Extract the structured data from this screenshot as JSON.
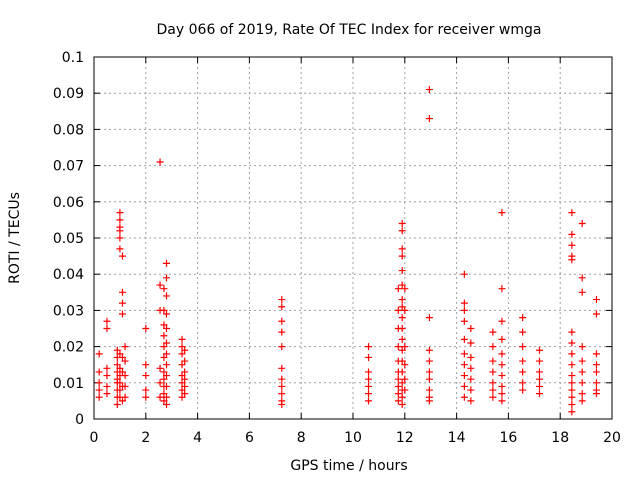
{
  "chart_data": {
    "type": "scatter",
    "title": "Day 066 of 2019, Rate Of TEC Index for receiver wmga",
    "xlabel": "GPS time / hours",
    "ylabel": "ROTI / TECUs",
    "xlim": [
      0,
      20
    ],
    "ylim": [
      0,
      0.1
    ],
    "xticks": [
      0,
      2,
      4,
      6,
      8,
      10,
      12,
      14,
      16,
      18,
      20
    ],
    "xtick_labels": [
      "0",
      "2",
      "4",
      "6",
      "8",
      "10",
      "12",
      "14",
      "16",
      "18",
      "20"
    ],
    "yticks": [
      0,
      0.01,
      0.02,
      0.03,
      0.04,
      0.05,
      0.06,
      0.07,
      0.08,
      0.09,
      0.1
    ],
    "ytick_labels": [
      "0",
      "0.01",
      "0.02",
      "0.03",
      "0.04",
      "0.05",
      "0.06",
      "0.07",
      "0.08",
      "0.09",
      "0.1"
    ],
    "grid": true,
    "marker": "plus",
    "color": "#ff0000",
    "series": [
      {
        "name": "ROTI",
        "points": [
          [
            0.2,
            0.018
          ],
          [
            0.2,
            0.013
          ],
          [
            0.2,
            0.01
          ],
          [
            0.2,
            0.008
          ],
          [
            0.2,
            0.006
          ],
          [
            0.5,
            0.027
          ],
          [
            0.5,
            0.025
          ],
          [
            0.5,
            0.014
          ],
          [
            0.5,
            0.012
          ],
          [
            0.5,
            0.009
          ],
          [
            0.5,
            0.007
          ],
          [
            0.9,
            0.019
          ],
          [
            0.9,
            0.017
          ],
          [
            0.9,
            0.015
          ],
          [
            0.9,
            0.013
          ],
          [
            0.9,
            0.011
          ],
          [
            0.9,
            0.01
          ],
          [
            0.9,
            0.008
          ],
          [
            0.9,
            0.006
          ],
          [
            0.9,
            0.004
          ],
          [
            1.0,
            0.057
          ],
          [
            1.0,
            0.055
          ],
          [
            1.0,
            0.053
          ],
          [
            1.0,
            0.052
          ],
          [
            1.0,
            0.05
          ],
          [
            1.0,
            0.047
          ],
          [
            1.0,
            0.018
          ],
          [
            1.0,
            0.014
          ],
          [
            1.0,
            0.012
          ],
          [
            1.0,
            0.01
          ],
          [
            1.0,
            0.008
          ],
          [
            1.0,
            0.006
          ],
          [
            1.1,
            0.045
          ],
          [
            1.1,
            0.035
          ],
          [
            1.1,
            0.032
          ],
          [
            1.1,
            0.029
          ],
          [
            1.1,
            0.017
          ],
          [
            1.1,
            0.013
          ],
          [
            1.1,
            0.009
          ],
          [
            1.1,
            0.005
          ],
          [
            1.2,
            0.02
          ],
          [
            1.2,
            0.016
          ],
          [
            1.2,
            0.012
          ],
          [
            1.2,
            0.009
          ],
          [
            1.2,
            0.006
          ],
          [
            2.0,
            0.025
          ],
          [
            2.0,
            0.015
          ],
          [
            2.0,
            0.012
          ],
          [
            2.0,
            0.008
          ],
          [
            2.0,
            0.006
          ],
          [
            2.55,
            0.071
          ],
          [
            2.55,
            0.037
          ],
          [
            2.55,
            0.03
          ],
          [
            2.55,
            0.014
          ],
          [
            2.55,
            0.01
          ],
          [
            2.55,
            0.006
          ],
          [
            2.7,
            0.036
          ],
          [
            2.7,
            0.03
          ],
          [
            2.7,
            0.026
          ],
          [
            2.7,
            0.023
          ],
          [
            2.7,
            0.02
          ],
          [
            2.7,
            0.017
          ],
          [
            2.7,
            0.013
          ],
          [
            2.7,
            0.011
          ],
          [
            2.7,
            0.009
          ],
          [
            2.7,
            0.007
          ],
          [
            2.7,
            0.005
          ],
          [
            2.8,
            0.043
          ],
          [
            2.8,
            0.039
          ],
          [
            2.8,
            0.034
          ],
          [
            2.8,
            0.029
          ],
          [
            2.8,
            0.025
          ],
          [
            2.8,
            0.021
          ],
          [
            2.8,
            0.018
          ],
          [
            2.8,
            0.015
          ],
          [
            2.8,
            0.012
          ],
          [
            2.8,
            0.009
          ],
          [
            2.8,
            0.006
          ],
          [
            2.8,
            0.004
          ],
          [
            3.4,
            0.022
          ],
          [
            3.4,
            0.02
          ],
          [
            3.4,
            0.018
          ],
          [
            3.4,
            0.015
          ],
          [
            3.4,
            0.012
          ],
          [
            3.4,
            0.01
          ],
          [
            3.4,
            0.008
          ],
          [
            3.4,
            0.006
          ],
          [
            3.5,
            0.019
          ],
          [
            3.5,
            0.016
          ],
          [
            3.5,
            0.013
          ],
          [
            3.5,
            0.011
          ],
          [
            3.5,
            0.009
          ],
          [
            3.5,
            0.007
          ],
          [
            7.25,
            0.033
          ],
          [
            7.25,
            0.031
          ],
          [
            7.25,
            0.027
          ],
          [
            7.25,
            0.024
          ],
          [
            7.25,
            0.02
          ],
          [
            7.25,
            0.014
          ],
          [
            7.25,
            0.011
          ],
          [
            7.25,
            0.009
          ],
          [
            7.25,
            0.007
          ],
          [
            7.25,
            0.005
          ],
          [
            7.25,
            0.004
          ],
          [
            10.6,
            0.02
          ],
          [
            10.6,
            0.017
          ],
          [
            10.6,
            0.013
          ],
          [
            10.6,
            0.011
          ],
          [
            10.6,
            0.009
          ],
          [
            10.6,
            0.007
          ],
          [
            10.6,
            0.005
          ],
          [
            11.75,
            0.036
          ],
          [
            11.75,
            0.03
          ],
          [
            11.75,
            0.025
          ],
          [
            11.75,
            0.02
          ],
          [
            11.75,
            0.016
          ],
          [
            11.75,
            0.013
          ],
          [
            11.75,
            0.011
          ],
          [
            11.75,
            0.009
          ],
          [
            11.75,
            0.007
          ],
          [
            11.75,
            0.005
          ],
          [
            11.9,
            0.054
          ],
          [
            11.9,
            0.052
          ],
          [
            11.9,
            0.047
          ],
          [
            11.9,
            0.045
          ],
          [
            11.9,
            0.041
          ],
          [
            11.9,
            0.037
          ],
          [
            11.9,
            0.033
          ],
          [
            11.9,
            0.031
          ],
          [
            11.9,
            0.028
          ],
          [
            11.9,
            0.025
          ],
          [
            11.9,
            0.022
          ],
          [
            11.9,
            0.019
          ],
          [
            11.9,
            0.016
          ],
          [
            11.9,
            0.013
          ],
          [
            11.9,
            0.01
          ],
          [
            11.9,
            0.008
          ],
          [
            11.9,
            0.006
          ],
          [
            11.9,
            0.004
          ],
          [
            12.0,
            0.036
          ],
          [
            12.0,
            0.03
          ],
          [
            12.0,
            0.02
          ],
          [
            12.0,
            0.015
          ],
          [
            12.0,
            0.011
          ],
          [
            12.0,
            0.008
          ],
          [
            12.95,
            0.091
          ],
          [
            12.95,
            0.083
          ],
          [
            12.95,
            0.028
          ],
          [
            12.95,
            0.019
          ],
          [
            12.95,
            0.016
          ],
          [
            12.95,
            0.013
          ],
          [
            12.95,
            0.011
          ],
          [
            12.95,
            0.008
          ],
          [
            12.95,
            0.006
          ],
          [
            12.95,
            0.005
          ],
          [
            14.3,
            0.04
          ],
          [
            14.3,
            0.032
          ],
          [
            14.3,
            0.03
          ],
          [
            14.3,
            0.027
          ],
          [
            14.3,
            0.022
          ],
          [
            14.3,
            0.018
          ],
          [
            14.3,
            0.015
          ],
          [
            14.3,
            0.012
          ],
          [
            14.3,
            0.009
          ],
          [
            14.3,
            0.006
          ],
          [
            14.55,
            0.025
          ],
          [
            14.55,
            0.021
          ],
          [
            14.55,
            0.017
          ],
          [
            14.55,
            0.014
          ],
          [
            14.55,
            0.011
          ],
          [
            14.55,
            0.008
          ],
          [
            14.55,
            0.005
          ],
          [
            15.4,
            0.024
          ],
          [
            15.4,
            0.02
          ],
          [
            15.4,
            0.016
          ],
          [
            15.4,
            0.013
          ],
          [
            15.4,
            0.01
          ],
          [
            15.4,
            0.008
          ],
          [
            15.4,
            0.006
          ],
          [
            15.75,
            0.057
          ],
          [
            15.75,
            0.036
          ],
          [
            15.75,
            0.027
          ],
          [
            15.75,
            0.022
          ],
          [
            15.75,
            0.018
          ],
          [
            15.75,
            0.015
          ],
          [
            15.75,
            0.012
          ],
          [
            15.75,
            0.009
          ],
          [
            15.75,
            0.007
          ],
          [
            15.75,
            0.005
          ],
          [
            16.55,
            0.028
          ],
          [
            16.55,
            0.024
          ],
          [
            16.55,
            0.02
          ],
          [
            16.55,
            0.016
          ],
          [
            16.55,
            0.013
          ],
          [
            16.55,
            0.01
          ],
          [
            16.55,
            0.008
          ],
          [
            17.2,
            0.019
          ],
          [
            17.2,
            0.016
          ],
          [
            17.2,
            0.013
          ],
          [
            17.2,
            0.011
          ],
          [
            17.2,
            0.009
          ],
          [
            17.2,
            0.007
          ],
          [
            18.45,
            0.057
          ],
          [
            18.45,
            0.051
          ],
          [
            18.45,
            0.048
          ],
          [
            18.45,
            0.045
          ],
          [
            18.45,
            0.044
          ],
          [
            18.45,
            0.024
          ],
          [
            18.45,
            0.021
          ],
          [
            18.45,
            0.018
          ],
          [
            18.45,
            0.015
          ],
          [
            18.45,
            0.012
          ],
          [
            18.45,
            0.01
          ],
          [
            18.45,
            0.008
          ],
          [
            18.45,
            0.006
          ],
          [
            18.45,
            0.004
          ],
          [
            18.45,
            0.002
          ],
          [
            18.85,
            0.054
          ],
          [
            18.85,
            0.039
          ],
          [
            18.85,
            0.035
          ],
          [
            18.85,
            0.02
          ],
          [
            18.85,
            0.016
          ],
          [
            18.85,
            0.013
          ],
          [
            18.85,
            0.01
          ],
          [
            18.85,
            0.007
          ],
          [
            18.85,
            0.005
          ],
          [
            19.4,
            0.033
          ],
          [
            19.4,
            0.029
          ],
          [
            19.4,
            0.018
          ],
          [
            19.4,
            0.015
          ],
          [
            19.4,
            0.013
          ],
          [
            19.4,
            0.01
          ],
          [
            19.4,
            0.008
          ],
          [
            19.4,
            0.007
          ]
        ]
      }
    ]
  }
}
